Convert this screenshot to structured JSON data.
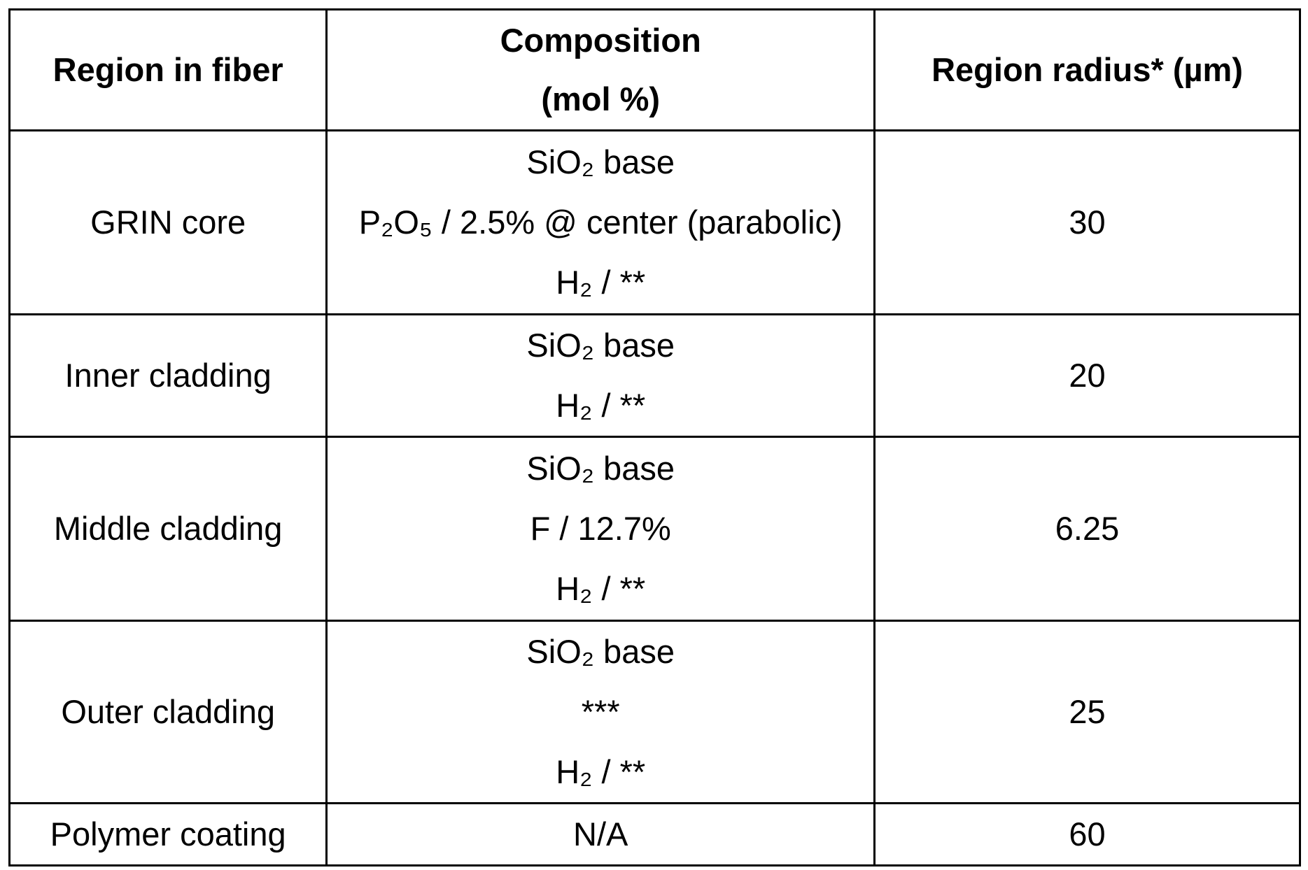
{
  "headers": {
    "region": "Region in fiber",
    "composition_line1": "Composition",
    "composition_line2": "(mol %)",
    "radius": "Region radius* (µm)"
  },
  "rows": [
    {
      "region": "GRIN core",
      "composition": [
        "SiO₂ base",
        "P₂O₅ / 2.5% @ center (parabolic)",
        "H₂ / **"
      ],
      "radius": "30"
    },
    {
      "region": "Inner cladding",
      "composition": [
        "SiO₂ base",
        "H₂ / **"
      ],
      "radius": "20"
    },
    {
      "region": "Middle cladding",
      "composition": [
        "SiO₂ base",
        "F / 12.7%",
        "H₂ / **"
      ],
      "radius": "6.25"
    },
    {
      "region": "Outer cladding",
      "composition": [
        "SiO₂ base",
        "***",
        "H₂ / **"
      ],
      "radius": "25"
    },
    {
      "region": "Polymer coating",
      "composition": [
        "N/A"
      ],
      "radius": "60"
    }
  ]
}
